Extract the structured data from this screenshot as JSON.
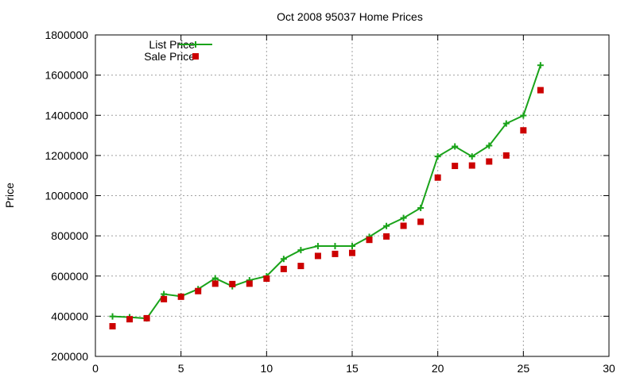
{
  "chart_data": {
    "type": "line",
    "title": "Oct 2008 95037 Home Prices",
    "xlabel": "",
    "ylabel": "Price",
    "xlim": [
      0,
      30
    ],
    "ylim": [
      200000,
      1800000
    ],
    "xticks": [
      0,
      5,
      10,
      15,
      20,
      25,
      30
    ],
    "yticks": [
      200000,
      400000,
      600000,
      800000,
      1000000,
      1200000,
      1400000,
      1600000,
      1800000
    ],
    "grid": true,
    "legend_position": "top-left",
    "series": [
      {
        "name": "List Price",
        "style": "line-with-plus-markers",
        "color": "#1aa31a",
        "x": [
          1,
          2,
          3,
          4,
          5,
          6,
          7,
          8,
          9,
          10,
          11,
          12,
          13,
          14,
          15,
          16,
          17,
          18,
          19,
          20,
          21,
          22,
          23,
          24,
          25,
          26
        ],
        "y": [
          399000,
          395000,
          389000,
          510000,
          499000,
          535000,
          589000,
          549000,
          579000,
          599000,
          685000,
          729000,
          749000,
          749000,
          749000,
          795000,
          849000,
          889000,
          939000,
          1195000,
          1245000,
          1195000,
          1249000,
          1359000,
          1399000,
          1649000
        ]
      },
      {
        "name": "Sale Price",
        "style": "square-markers",
        "color": "#cc0000",
        "x": [
          1,
          2,
          3,
          4,
          5,
          6,
          7,
          8,
          9,
          10,
          11,
          12,
          13,
          14,
          15,
          16,
          17,
          18,
          19,
          20,
          21,
          22,
          23,
          24,
          25,
          26
        ],
        "y": [
          350000,
          385000,
          390000,
          485000,
          497000,
          525000,
          562000,
          560000,
          562000,
          587000,
          635000,
          650000,
          700000,
          710000,
          715000,
          780000,
          797000,
          850000,
          870000,
          1090000,
          1148000,
          1150000,
          1170000,
          1200000,
          1325000,
          1525000
        ]
      }
    ]
  }
}
